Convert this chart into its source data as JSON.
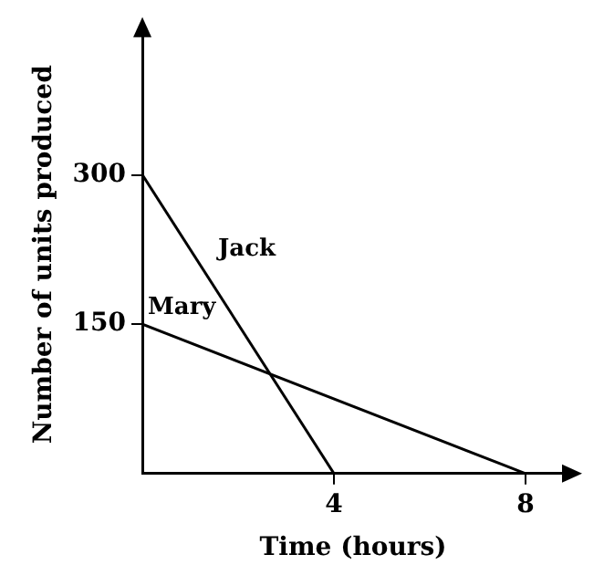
{
  "chart_data": {
    "type": "line",
    "xlabel": "Time (hours)",
    "ylabel": "Number of units produced",
    "xlim": [
      0,
      8.8
    ],
    "ylim": [
      0,
      440
    ],
    "xticks": [
      4,
      8
    ],
    "yticks": [
      150,
      300
    ],
    "grid": false,
    "legend": false,
    "marker": "none",
    "line_style": "solid",
    "series": [
      {
        "name": "Jack",
        "color": "#000000",
        "x": [
          0,
          4
        ],
        "values": [
          300,
          0
        ]
      },
      {
        "name": "Mary",
        "color": "#000000",
        "x": [
          0,
          8
        ],
        "values": [
          150,
          0
        ]
      }
    ]
  }
}
